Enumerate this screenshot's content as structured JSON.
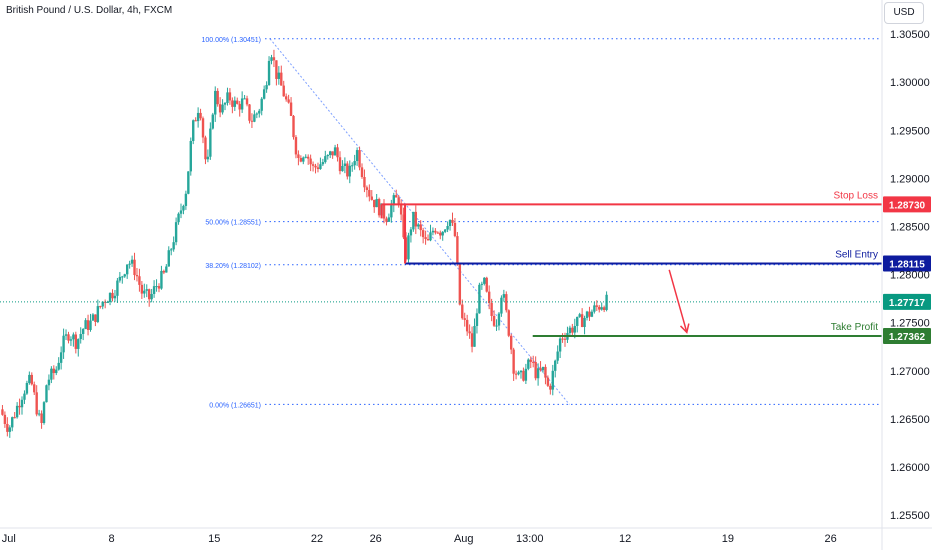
{
  "header": {
    "symbol_title": "British Pound / U.S. Dollar, 4h, FXCM",
    "currency": "USD"
  },
  "colors": {
    "up": "#26a69a",
    "down": "#ef5350",
    "fib": "#2962ff",
    "stop_loss": "#f23645",
    "sell_entry": "#0d1b9e",
    "take_profit": "#2e7d32",
    "current": "#089981",
    "arrow": "#f23645"
  },
  "chart_data": {
    "type": "candlestick",
    "ylim": [
      1.2545,
      1.3075
    ],
    "y_ticks": [
      "1.30500",
      "1.30000",
      "1.29500",
      "1.29000",
      "1.28500",
      "1.28000",
      "1.27500",
      "1.27000",
      "1.26500",
      "1.26000",
      "1.25500"
    ],
    "x_ticks": [
      {
        "label": "Jul",
        "day": 1
      },
      {
        "label": "8",
        "day": 8
      },
      {
        "label": "15",
        "day": 15
      },
      {
        "label": "22",
        "day": 22
      },
      {
        "label": "26",
        "day": 26
      },
      {
        "label": "Aug",
        "day": 32
      },
      {
        "label": "13:00",
        "day": 36.5
      },
      {
        "label": "12",
        "day": 43
      },
      {
        "label": "19",
        "day": 50
      },
      {
        "label": "26",
        "day": 57
      }
    ],
    "x_domain": [
      0.4,
      60.5
    ],
    "close_path": [
      [
        0.4,
        1.266
      ],
      [
        1.0,
        1.264
      ],
      [
        1.5,
        1.266
      ],
      [
        2.0,
        1.268
      ],
      [
        2.5,
        1.269
      ],
      [
        3.2,
        1.264
      ],
      [
        3.6,
        1.269
      ],
      [
        4.2,
        1.27
      ],
      [
        4.6,
        1.2725
      ],
      [
        5.1,
        1.274
      ],
      [
        5.6,
        1.273
      ],
      [
        6.1,
        1.2745
      ],
      [
        6.6,
        1.275
      ],
      [
        7.0,
        1.276
      ],
      [
        7.5,
        1.2775
      ],
      [
        8.0,
        1.278
      ],
      [
        8.6,
        1.2795
      ],
      [
        9.1,
        1.2815
      ],
      [
        9.6,
        1.2805
      ],
      [
        10.1,
        1.278
      ],
      [
        10.6,
        1.2775
      ],
      [
        11.1,
        1.279
      ],
      [
        11.6,
        1.28
      ],
      [
        12.1,
        1.283
      ],
      [
        12.6,
        1.286
      ],
      [
        13.1,
        1.289
      ],
      [
        13.5,
        1.295
      ],
      [
        14.0,
        1.298
      ],
      [
        14.5,
        1.2905
      ],
      [
        15.0,
        1.299
      ],
      [
        15.5,
        1.297
      ],
      [
        16.0,
        1.2985
      ],
      [
        16.5,
        1.2975
      ],
      [
        17.0,
        1.298
      ],
      [
        17.5,
        1.296
      ],
      [
        18.0,
        1.297
      ],
      [
        18.5,
        1.2995
      ],
      [
        18.8,
        1.304
      ],
      [
        19.2,
        1.301
      ],
      [
        19.7,
        1.299
      ],
      [
        20.2,
        1.2965
      ],
      [
        20.7,
        1.292
      ],
      [
        21.2,
        1.293
      ],
      [
        21.7,
        1.291
      ],
      [
        22.2,
        1.2915
      ],
      [
        22.7,
        1.292
      ],
      [
        23.2,
        1.293
      ],
      [
        23.7,
        1.291
      ],
      [
        24.2,
        1.2905
      ],
      [
        24.7,
        1.293
      ],
      [
        25.2,
        1.29
      ],
      [
        25.7,
        1.288
      ],
      [
        26.2,
        1.287
      ],
      [
        26.7,
        1.286
      ],
      [
        27.2,
        1.2875
      ],
      [
        27.6,
        1.288
      ],
      [
        28.0,
        1.2815
      ],
      [
        28.5,
        1.286
      ],
      [
        29.0,
        1.2845
      ],
      [
        29.5,
        1.283
      ],
      [
        30.0,
        1.285
      ],
      [
        30.5,
        1.2845
      ],
      [
        31.0,
        1.286
      ],
      [
        31.4,
        1.284
      ],
      [
        31.8,
        1.2755
      ],
      [
        32.2,
        1.2745
      ],
      [
        32.6,
        1.2725
      ],
      [
        33.0,
        1.278
      ],
      [
        33.4,
        1.279
      ],
      [
        33.8,
        1.276
      ],
      [
        34.2,
        1.275
      ],
      [
        34.6,
        1.2785
      ],
      [
        35.0,
        1.275
      ],
      [
        35.4,
        1.2705
      ],
      [
        35.8,
        1.269
      ],
      [
        36.2,
        1.27
      ],
      [
        36.6,
        1.271
      ],
      [
        37.0,
        1.2695
      ],
      [
        37.4,
        1.27
      ],
      [
        37.8,
        1.268
      ],
      [
        38.2,
        1.2705
      ],
      [
        38.6,
        1.2735
      ],
      [
        39.0,
        1.274
      ],
      [
        39.4,
        1.2745
      ],
      [
        39.8,
        1.275
      ],
      [
        40.2,
        1.2755
      ],
      [
        40.6,
        1.276
      ],
      [
        41.0,
        1.2765
      ],
      [
        41.4,
        1.277
      ],
      [
        41.8,
        1.2772
      ]
    ],
    "fib_levels": [
      {
        "label": "100.00% (1.30451)",
        "value": 1.30451
      },
      {
        "label": "50.00% (1.28551)",
        "value": 1.28551
      },
      {
        "label": "38.20% (1.28102)",
        "value": 1.28102
      },
      {
        "label": "0.00% (1.26651)",
        "value": 1.26651
      }
    ],
    "fib_trendline": {
      "from": [
        18.8,
        1.30451
      ],
      "to": [
        39.2,
        1.26651
      ]
    },
    "levels": {
      "stop_loss": {
        "label": "Stop Loss",
        "value": 1.2873,
        "tag": "1.28730",
        "start_day": 26.4
      },
      "sell_entry": {
        "label": "Sell Entry",
        "value": 1.28115,
        "tag": "1.28115",
        "start_day": 28.0
      },
      "take_profit": {
        "label": "Take Profit",
        "value": 1.27362,
        "tag": "1.27362",
        "start_day": 36.7
      }
    },
    "current_price": {
      "value": 1.27717,
      "tag": "1.27717"
    },
    "arrow": {
      "from": [
        46.0,
        1.2805
      ],
      "to": [
        47.2,
        1.274
      ]
    }
  }
}
